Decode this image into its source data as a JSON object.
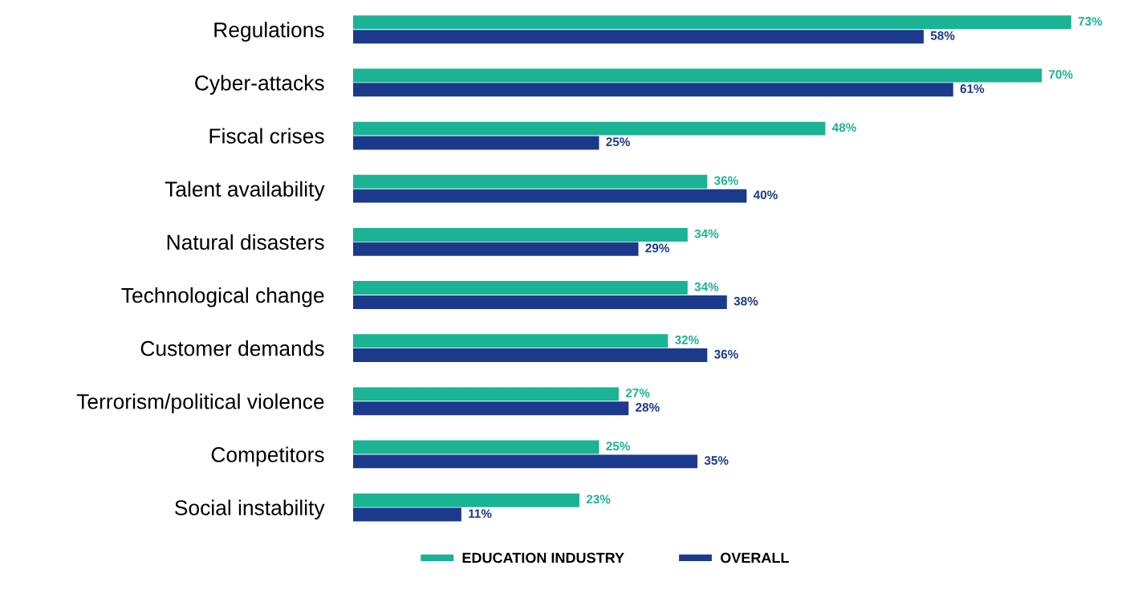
{
  "chart_data": {
    "type": "bar",
    "orientation": "horizontal",
    "categories": [
      "Regulations",
      "Cyber-attacks",
      "Fiscal crises",
      "Talent availability",
      "Natural disasters",
      "Technological change",
      "Customer demands",
      "Terrorism/political violence",
      "Competitors",
      "Social instability"
    ],
    "series": [
      {
        "name": "EDUCATION INDUSTRY",
        "color": "#1ab394",
        "values": [
          73,
          70,
          48,
          36,
          34,
          34,
          32,
          27,
          25,
          23
        ],
        "value_labels": [
          "73%",
          "70%",
          "48%",
          "36%",
          "34%",
          "34%",
          "32%",
          "27%",
          "25%",
          "23%"
        ]
      },
      {
        "name": "OVERALL",
        "color": "#1b3a8c",
        "values": [
          58,
          61,
          25,
          40,
          29,
          38,
          36,
          28,
          35,
          11
        ],
        "value_labels": [
          "58%",
          "61%",
          "25%",
          "40%",
          "29%",
          "38%",
          "36%",
          "28%",
          "35%",
          "11%"
        ]
      }
    ],
    "grid": false,
    "legend": "bottom",
    "tick_labels": "y"
  }
}
